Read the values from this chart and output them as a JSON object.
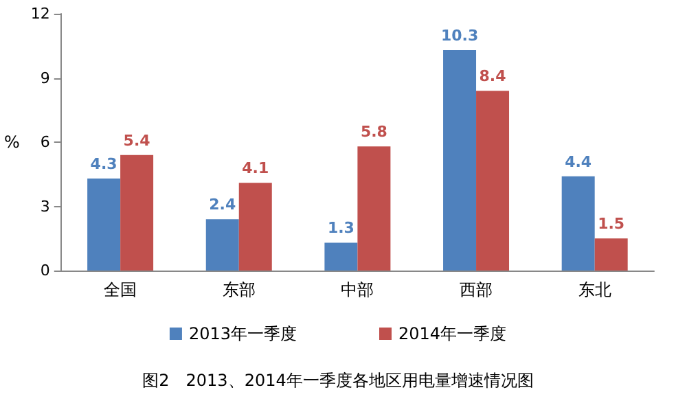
{
  "chart_data": {
    "type": "bar",
    "title": "图2　2013、2014年一季度各地区用电量增速情况图",
    "ylabel": "%",
    "categories": [
      "全国",
      "东部",
      "中部",
      "西部",
      "东北"
    ],
    "series": [
      {
        "name": "2013年一季度",
        "color": "#4f81bd",
        "values": [
          4.3,
          2.4,
          1.3,
          10.3,
          4.4
        ]
      },
      {
        "name": "2014年一季度",
        "color": "#c0504d",
        "values": [
          5.4,
          4.1,
          5.8,
          8.4,
          1.5
        ]
      }
    ],
    "ylim": [
      0,
      12
    ],
    "yticks": [
      0,
      3,
      6,
      9,
      12
    ],
    "grid": false,
    "legend": "bottom",
    "data_labels": true
  }
}
